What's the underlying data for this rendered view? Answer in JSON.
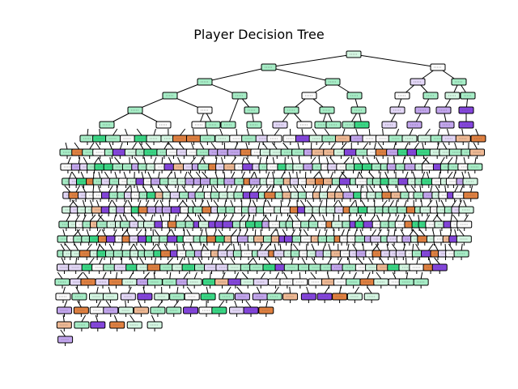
{
  "figure": {
    "title": "Player Decision Tree"
  },
  "tree": {
    "node_label_placeholder": "node",
    "class_colors": {
      "green_strong": "#39d885",
      "green_light": "#a6edc6",
      "green_pale": "#d4f6e2",
      "purple_strong": "#8445dd",
      "purple_light": "#c3a6ee",
      "purple_pale": "#e3d7f7",
      "orange_strong": "#e08040",
      "orange_light": "#efb994",
      "neutral": "#fbfbfb"
    },
    "edge_color": "#000000",
    "depth": 22
  }
}
